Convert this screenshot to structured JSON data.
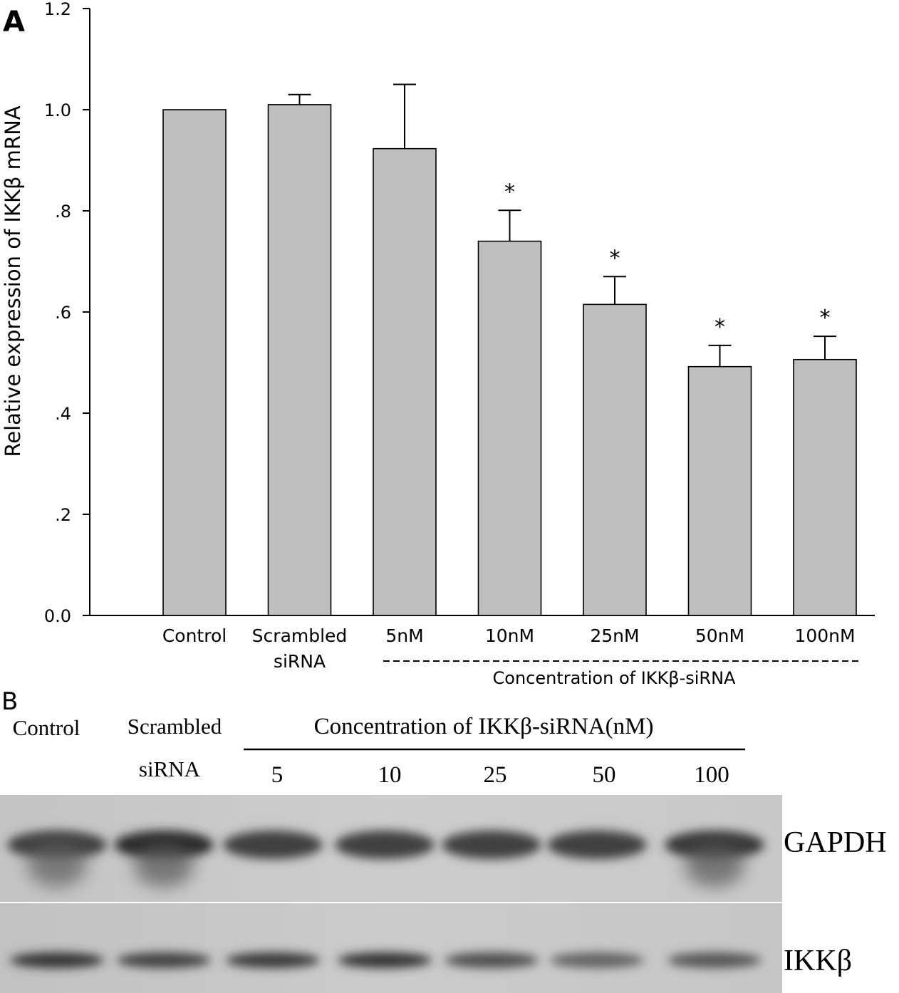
{
  "panel_a": {
    "label": "A",
    "group_label": "Concentration of IKKβ-siRNA"
  },
  "chart_data": {
    "type": "bar",
    "categories": [
      [
        "Control"
      ],
      [
        "Scrambled",
        "siRNA"
      ],
      [
        "5nM"
      ],
      [
        "10nM"
      ],
      [
        "25nM"
      ],
      [
        "50nM"
      ],
      [
        "100nM"
      ]
    ],
    "values": [
      1.0,
      1.01,
      0.923,
      0.74,
      0.615,
      0.492,
      0.506
    ],
    "error_plus": [
      0.0,
      0.02,
      0.127,
      0.061,
      0.055,
      0.042,
      0.046
    ],
    "significant": [
      false,
      false,
      false,
      true,
      true,
      true,
      true
    ],
    "significance_marker": "*",
    "title": "",
    "xlabel": "",
    "ylabel": "Relative expression of IKKβ   mRNA",
    "ylim": [
      0,
      1.2
    ],
    "yticks": [
      0,
      0.2,
      0.4,
      0.6,
      0.8,
      1.0,
      1.2
    ],
    "ytick_labels": [
      "0.0",
      ".2",
      ".4",
      ".6",
      ".8",
      "1.0",
      "1.2"
    ],
    "grid": false,
    "bar_color": "#bfbfbf"
  },
  "panel_b": {
    "label": "B",
    "lane_headers": {
      "control": "Control",
      "scrambled_line1": "Scrambled",
      "scrambled_line2": "siRNA",
      "concentration": "Concentration of IKKβ-siRNA(nM)",
      "doses": [
        "5",
        "10",
        "25",
        "50",
        "100"
      ]
    },
    "blot_rows": [
      "GAPDH",
      "IKKβ"
    ],
    "gapdh_intensity": [
      0.8,
      0.95,
      0.8,
      0.8,
      0.8,
      0.8,
      0.85
    ],
    "ikkb_intensity": [
      0.9,
      0.8,
      0.85,
      0.9,
      0.7,
      0.55,
      0.65
    ]
  }
}
